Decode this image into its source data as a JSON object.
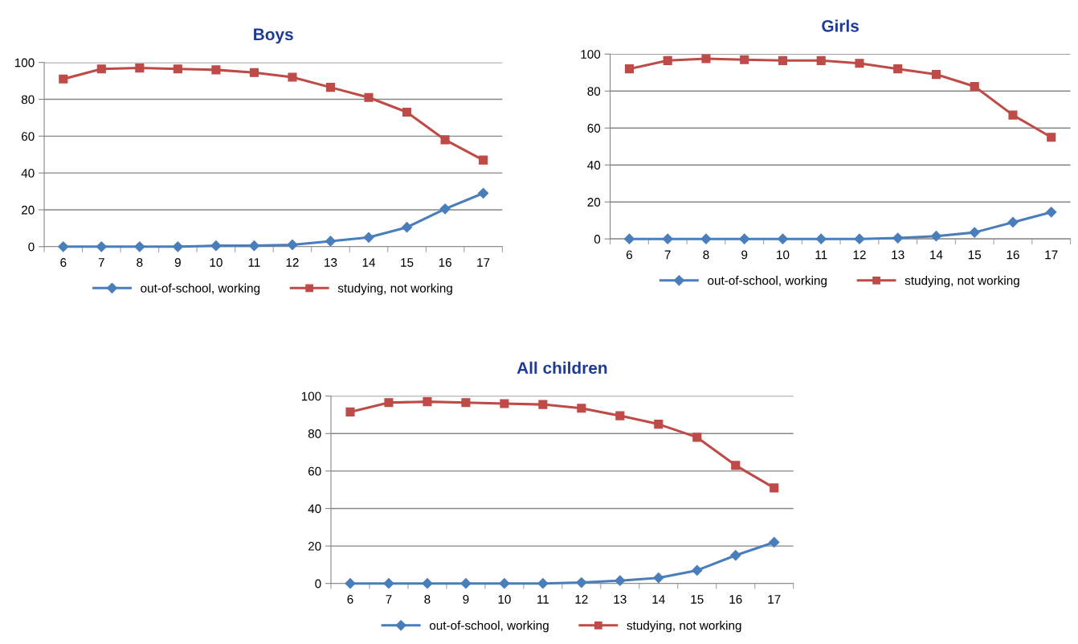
{
  "chart_data": [
    {
      "type": "line",
      "title": "Boys",
      "categories": [
        "6",
        "7",
        "8",
        "9",
        "10",
        "11",
        "12",
        "13",
        "14",
        "15",
        "16",
        "17"
      ],
      "ylim": [
        0,
        100
      ],
      "yticks": [
        0,
        20,
        40,
        60,
        80,
        100
      ],
      "grid": "y",
      "legend": "bottom",
      "series": [
        {
          "name": "out-of-school, working",
          "color": "#4a7ebb",
          "marker": "diamond",
          "values": [
            0,
            0,
            0,
            0,
            0.5,
            0.5,
            1,
            3,
            5,
            10.5,
            20.5,
            29
          ]
        },
        {
          "name": "studying, not working",
          "color": "#be4b48",
          "marker": "square",
          "values": [
            91,
            96.5,
            97,
            96.5,
            96,
            94.5,
            92,
            86.5,
            81,
            73,
            58,
            47
          ]
        }
      ]
    },
    {
      "type": "line",
      "title": "Girls",
      "categories": [
        "6",
        "7",
        "8",
        "9",
        "10",
        "11",
        "12",
        "13",
        "14",
        "15",
        "16",
        "17"
      ],
      "ylim": [
        0,
        100
      ],
      "yticks": [
        0,
        20,
        40,
        60,
        80,
        100
      ],
      "grid": "y",
      "legend": "bottom",
      "series": [
        {
          "name": "out-of-school, working",
          "color": "#4a7ebb",
          "marker": "diamond",
          "values": [
            0,
            0,
            0,
            0,
            0,
            0,
            0,
            0.5,
            1.5,
            3.5,
            9,
            14.5
          ]
        },
        {
          "name": "studying, not working",
          "color": "#be4b48",
          "marker": "square",
          "values": [
            92,
            96.5,
            97.5,
            97,
            96.5,
            96.5,
            95,
            92,
            89,
            82.5,
            67,
            55
          ]
        }
      ]
    },
    {
      "type": "line",
      "title": "All children",
      "categories": [
        "6",
        "7",
        "8",
        "9",
        "10",
        "11",
        "12",
        "13",
        "14",
        "15",
        "16",
        "17"
      ],
      "ylim": [
        0,
        100
      ],
      "yticks": [
        0,
        20,
        40,
        60,
        80,
        100
      ],
      "grid": "y",
      "legend": "bottom",
      "series": [
        {
          "name": "out-of-school, working",
          "color": "#4a7ebb",
          "marker": "diamond",
          "values": [
            0,
            0,
            0,
            0,
            0,
            0,
            0.5,
            1.5,
            3,
            7,
            15,
            22
          ]
        },
        {
          "name": "studying, not working",
          "color": "#be4b48",
          "marker": "square",
          "values": [
            91.5,
            96.5,
            97,
            96.5,
            96,
            95.5,
            93.5,
            89.5,
            85,
            78,
            63,
            51
          ]
        }
      ]
    }
  ]
}
